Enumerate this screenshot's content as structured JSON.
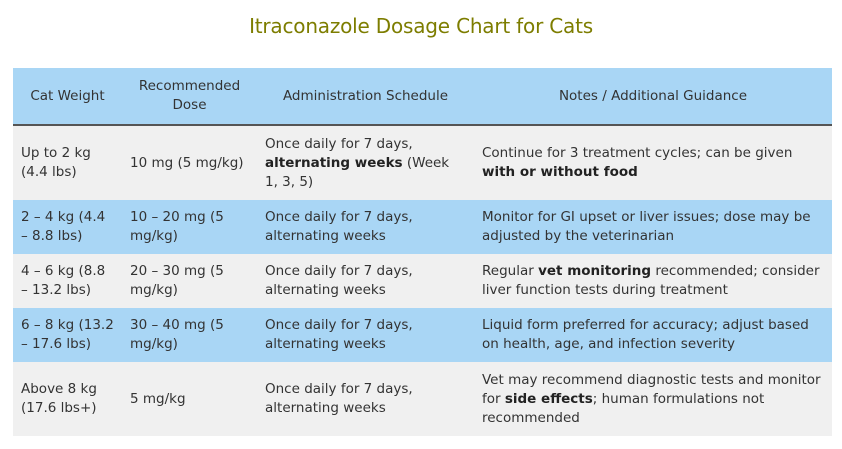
{
  "header": {
    "title": "Itraconazole Dosage Chart for Cats"
  },
  "table": {
    "columns": [
      "Cat Weight",
      "Recommended Dose",
      "Administration Schedule",
      "Notes / Additional Guidance"
    ],
    "rows": [
      [
        "Up to 2 kg (4.4 lbs)",
        "10 mg (5 mg/kg)",
        [
          {
            "text": "Once daily for 7 days, "
          },
          {
            "text": "alternating weeks",
            "bold": true
          },
          {
            "text": " (Week 1, 3, 5)"
          }
        ],
        [
          {
            "text": "Continue for 3 treatment cycles; can be given "
          },
          {
            "text": "with or without food",
            "bold": true
          }
        ]
      ],
      [
        "2 – 4 kg (4.4 – 8.8 lbs)",
        "10 – 20 mg (5 mg/kg)",
        "Once daily for 7 days, alternating weeks",
        "Monitor for GI upset or liver issues; dose may be adjusted by the veterinarian"
      ],
      [
        "4 – 6 kg (8.8 – 13.2 lbs)",
        "20 – 30 mg (5 mg/kg)",
        "Once daily for 7 days, alternating weeks",
        [
          {
            "text": "Regular "
          },
          {
            "text": "vet monitoring",
            "bold": true
          },
          {
            "text": " recommended; consider liver function tests during treatment"
          }
        ]
      ],
      [
        "6 – 8 kg (13.2 – 17.6 lbs)",
        "30 – 40 mg (5 mg/kg)",
        "Once daily for 7 days, alternating weeks",
        "Liquid form preferred for accuracy; adjust based on health, age, and infection severity"
      ],
      [
        "Above 8 kg (17.6 lbs+)",
        "5 mg/kg",
        "Once daily for 7 days, alternating weeks",
        [
          {
            "text": "Vet may recommend diagnostic tests and monitor for "
          },
          {
            "text": "side effects",
            "bold": true
          },
          {
            "text": "; human formulations not recommended"
          }
        ]
      ]
    ]
  }
}
